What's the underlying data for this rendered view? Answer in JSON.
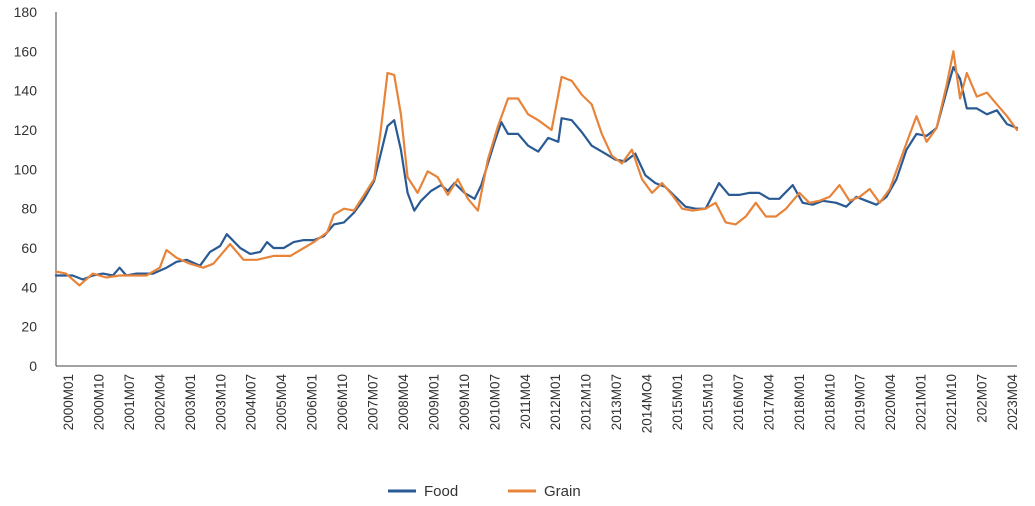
{
  "chart_data": {
    "type": "line",
    "ylim": [
      0,
      180
    ],
    "yticks": [
      0,
      20,
      40,
      60,
      80,
      100,
      120,
      140,
      160,
      180
    ],
    "x_start": "2000M01",
    "x_end": "2023M12",
    "xtick_labels": [
      "2000M01",
      "2000M10",
      "2001M07",
      "2002M04",
      "2003M01",
      "2003M10",
      "2004M07",
      "2005M04",
      "2006M01",
      "2006M10",
      "2007M07",
      "2008M04",
      "2009M01",
      "2009M10",
      "2010M07",
      "2011M04",
      "2012M01",
      "2012M10",
      "2013M07",
      "2014MO4",
      "2015M01",
      "2015M10",
      "2016M07",
      "2017M04",
      "2018M01",
      "2018M10",
      "2019M07",
      "2020M04",
      "2021M01",
      "2021M10",
      "202M07",
      "2023M04"
    ],
    "legend_position": "bottom-center",
    "grid": false,
    "series": [
      {
        "name": "Food",
        "color": "#2a5a93",
        "points": [
          [
            "2000M01",
            46
          ],
          [
            "2000M06",
            46
          ],
          [
            "2000M09",
            44
          ],
          [
            "2000M12",
            46
          ],
          [
            "2001M03",
            47
          ],
          [
            "2001M06",
            46
          ],
          [
            "2001M08",
            50
          ],
          [
            "2001M10",
            46
          ],
          [
            "2002M01",
            47
          ],
          [
            "2002M06",
            47
          ],
          [
            "2002M10",
            50
          ],
          [
            "2003M01",
            53
          ],
          [
            "2003M04",
            54
          ],
          [
            "2003M08",
            51
          ],
          [
            "2003M11",
            58
          ],
          [
            "2004M02",
            61
          ],
          [
            "2004M04",
            67
          ],
          [
            "2004M08",
            60
          ],
          [
            "2004M11",
            57
          ],
          [
            "2005M02",
            58
          ],
          [
            "2005M04",
            63
          ],
          [
            "2005M06",
            60
          ],
          [
            "2005M09",
            60
          ],
          [
            "2005M12",
            63
          ],
          [
            "2006M03",
            64
          ],
          [
            "2006M06",
            64
          ],
          [
            "2006M09",
            66
          ],
          [
            "2006M12",
            72
          ],
          [
            "2007M03",
            73
          ],
          [
            "2007M06",
            78
          ],
          [
            "2007M09",
            85
          ],
          [
            "2007M12",
            94
          ],
          [
            "2008M02",
            108
          ],
          [
            "2008M04",
            122
          ],
          [
            "2008M06",
            125
          ],
          [
            "2008M08",
            110
          ],
          [
            "2008M10",
            88
          ],
          [
            "2008M12",
            79
          ],
          [
            "2009M02",
            84
          ],
          [
            "2009M05",
            89
          ],
          [
            "2009M08",
            92
          ],
          [
            "2009M10",
            89
          ],
          [
            "2009M12",
            93
          ],
          [
            "2010M03",
            88
          ],
          [
            "2010M06",
            85
          ],
          [
            "2010M08",
            92
          ],
          [
            "2010M10",
            103
          ],
          [
            "2010M12",
            114
          ],
          [
            "2011M02",
            124
          ],
          [
            "2011M04",
            118
          ],
          [
            "2011M07",
            118
          ],
          [
            "2011M10",
            112
          ],
          [
            "2012M01",
            109
          ],
          [
            "2012M04",
            116
          ],
          [
            "2012M07",
            114
          ],
          [
            "2012M08",
            126
          ],
          [
            "2012M11",
            125
          ],
          [
            "2013M02",
            119
          ],
          [
            "2013M05",
            112
          ],
          [
            "2013M08",
            109
          ],
          [
            "2013M12",
            105
          ],
          [
            "2014M03",
            104
          ],
          [
            "2014M06",
            108
          ],
          [
            "2014M09",
            97
          ],
          [
            "2014M12",
            93
          ],
          [
            "2015M03",
            91
          ],
          [
            "2015M06",
            86
          ],
          [
            "2015M09",
            81
          ],
          [
            "2015M12",
            80
          ],
          [
            "2016M03",
            80
          ],
          [
            "2016M07",
            93
          ],
          [
            "2016M10",
            87
          ],
          [
            "2017M01",
            87
          ],
          [
            "2017M04",
            88
          ],
          [
            "2017M07",
            88
          ],
          [
            "2017M10",
            85
          ],
          [
            "2018M01",
            85
          ],
          [
            "2018M05",
            92
          ],
          [
            "2018M08",
            83
          ],
          [
            "2018M11",
            82
          ],
          [
            "2019M02",
            84
          ],
          [
            "2019M06",
            83
          ],
          [
            "2019M09",
            81
          ],
          [
            "2019M12",
            86
          ],
          [
            "2020M03",
            84
          ],
          [
            "2020M06",
            82
          ],
          [
            "2020M09",
            86
          ],
          [
            "2020M12",
            95
          ],
          [
            "2021M03",
            110
          ],
          [
            "2021M06",
            118
          ],
          [
            "2021M09",
            117
          ],
          [
            "2021M12",
            121
          ],
          [
            "2022M03",
            140
          ],
          [
            "2022M05",
            152
          ],
          [
            "2022M07",
            146
          ],
          [
            "2022M09",
            131
          ],
          [
            "2022M12",
            131
          ],
          [
            "2023M03",
            128
          ],
          [
            "2023M06",
            130
          ],
          [
            "2023M09",
            123
          ],
          [
            "2023M12",
            121
          ]
        ]
      },
      {
        "name": "Grain",
        "color": "#e8843a",
        "points": [
          [
            "2000M01",
            48
          ],
          [
            "2000M04",
            47
          ],
          [
            "2000M08",
            41
          ],
          [
            "2000M12",
            47
          ],
          [
            "2001M04",
            45
          ],
          [
            "2001M08",
            46
          ],
          [
            "2001M12",
            46
          ],
          [
            "2002M04",
            46
          ],
          [
            "2002M08",
            50
          ],
          [
            "2002M10",
            59
          ],
          [
            "2003M01",
            55
          ],
          [
            "2003M05",
            52
          ],
          [
            "2003M09",
            50
          ],
          [
            "2003M12",
            52
          ],
          [
            "2004M03",
            58
          ],
          [
            "2004M05",
            62
          ],
          [
            "2004M07",
            58
          ],
          [
            "2004M09",
            54
          ],
          [
            "2005M01",
            54
          ],
          [
            "2005M06",
            56
          ],
          [
            "2005M11",
            56
          ],
          [
            "2006M03",
            60
          ],
          [
            "2006M06",
            63
          ],
          [
            "2006M10",
            68
          ],
          [
            "2006M12",
            77
          ],
          [
            "2007M03",
            80
          ],
          [
            "2007M06",
            79
          ],
          [
            "2007M09",
            87
          ],
          [
            "2007M12",
            95
          ],
          [
            "2008M02",
            120
          ],
          [
            "2008M04",
            149
          ],
          [
            "2008M06",
            148
          ],
          [
            "2008M08",
            128
          ],
          [
            "2008M10",
            96
          ],
          [
            "2009M01",
            88
          ],
          [
            "2009M04",
            99
          ],
          [
            "2009M07",
            96
          ],
          [
            "2009M10",
            87
          ],
          [
            "2010M01",
            95
          ],
          [
            "2010M04",
            85
          ],
          [
            "2010M07",
            79
          ],
          [
            "2010M10",
            105
          ],
          [
            "2011M01",
            122
          ],
          [
            "2011M04",
            136
          ],
          [
            "2011M07",
            136
          ],
          [
            "2011M10",
            128
          ],
          [
            "2012M01",
            125
          ],
          [
            "2012M05",
            120
          ],
          [
            "2012M08",
            147
          ],
          [
            "2012M11",
            145
          ],
          [
            "2013M02",
            138
          ],
          [
            "2013M05",
            133
          ],
          [
            "2013M08",
            118
          ],
          [
            "2013M11",
            107
          ],
          [
            "2014M02",
            103
          ],
          [
            "2014M05",
            110
          ],
          [
            "2014M08",
            95
          ],
          [
            "2014M11",
            88
          ],
          [
            "2015M02",
            93
          ],
          [
            "2015M05",
            87
          ],
          [
            "2015M08",
            80
          ],
          [
            "2015M11",
            79
          ],
          [
            "2016M03",
            80
          ],
          [
            "2016M06",
            83
          ],
          [
            "2016M09",
            73
          ],
          [
            "2016M12",
            72
          ],
          [
            "2017M03",
            76
          ],
          [
            "2017M06",
            83
          ],
          [
            "2017M09",
            76
          ],
          [
            "2017M12",
            76
          ],
          [
            "2018M03",
            80
          ],
          [
            "2018M07",
            88
          ],
          [
            "2018M10",
            83
          ],
          [
            "2019M01",
            84
          ],
          [
            "2019M04",
            86
          ],
          [
            "2019M07",
            92
          ],
          [
            "2019M10",
            84
          ],
          [
            "2020M01",
            86
          ],
          [
            "2020M04",
            90
          ],
          [
            "2020M07",
            83
          ],
          [
            "2020M10",
            90
          ],
          [
            "2021M01",
            104
          ],
          [
            "2021M04",
            118
          ],
          [
            "2021M06",
            127
          ],
          [
            "2021M09",
            114
          ],
          [
            "2021M12",
            121
          ],
          [
            "2022M03",
            143
          ],
          [
            "2022M05",
            160
          ],
          [
            "2022M07",
            136
          ],
          [
            "2022M09",
            149
          ],
          [
            "2022M12",
            137
          ],
          [
            "2023M03",
            139
          ],
          [
            "2023M06",
            133
          ],
          [
            "2023M09",
            127
          ],
          [
            "2023M12",
            120
          ]
        ]
      }
    ]
  }
}
